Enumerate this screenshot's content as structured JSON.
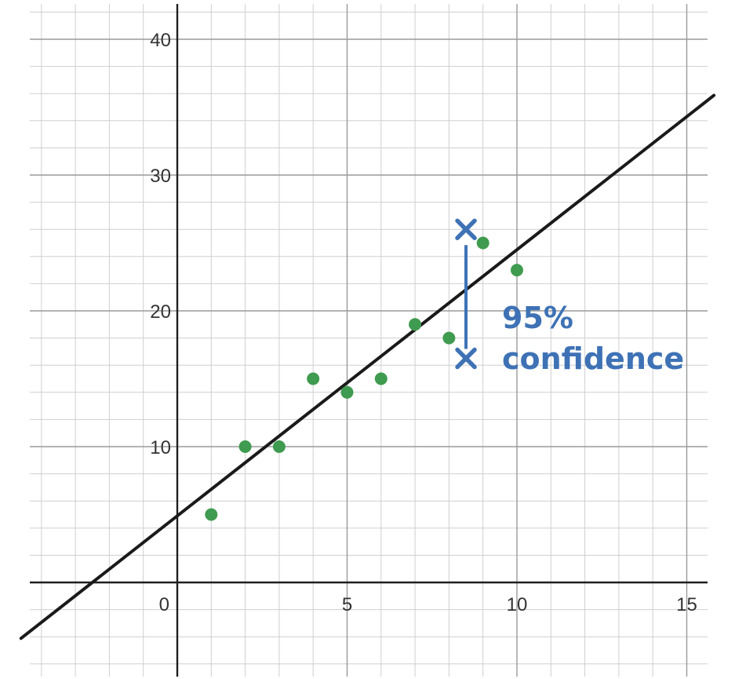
{
  "chart_data": {
    "type": "scatter",
    "title": "",
    "xlabel": "",
    "ylabel": "",
    "xlim": [
      -4.4,
      15.6
    ],
    "ylim": [
      -7,
      43
    ],
    "grid": true,
    "x_ticks": [
      0,
      5,
      10,
      15
    ],
    "y_ticks": [
      10,
      20,
      30,
      40
    ],
    "x_tick_labels": [
      "0",
      "5",
      "10",
      "15"
    ],
    "y_tick_labels": [
      "10",
      "20",
      "30",
      "40"
    ],
    "series": [
      {
        "points": [
          {
            "x": 1,
            "y": 5
          },
          {
            "x": 2,
            "y": 10
          },
          {
            "x": 3,
            "y": 10
          },
          {
            "x": 4,
            "y": 15
          },
          {
            "x": 5,
            "y": 14
          },
          {
            "x": 6,
            "y": 15
          },
          {
            "x": 7,
            "y": 19
          },
          {
            "x": 8,
            "y": 18
          },
          {
            "x": 9,
            "y": 25
          },
          {
            "x": 10,
            "y": 23
          }
        ],
        "color": "#3f9b4f"
      }
    ],
    "regression_line": {
      "slope": 1.96,
      "intercept": 4.9,
      "color": "#1a1a1a"
    },
    "confidence_interval": {
      "x": 8.5,
      "upper": 26,
      "lower": 16.5,
      "color": "#3e72b5"
    },
    "annotations": [
      {
        "text_lines": [
          "95%",
          "confidence"
        ],
        "color": "#3e72b5"
      }
    ]
  },
  "colors": {
    "minor_grid": "#cfcfcf",
    "major_grid": "#9a9a9a",
    "axis": "#1f1f1f",
    "tick_text": "#333333"
  }
}
